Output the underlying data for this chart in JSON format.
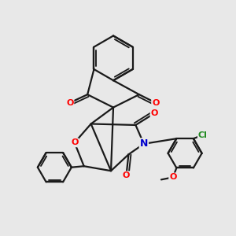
{
  "bg_color": "#e8e8e8",
  "bond_color": "#1a1a1a",
  "bond_width": 1.6,
  "atom_colors": {
    "O": "#ff0000",
    "N": "#0000cd",
    "Cl": "#228b22",
    "C": "#1a1a1a"
  },
  "figsize": [
    3.0,
    3.0
  ],
  "dpi": 100
}
